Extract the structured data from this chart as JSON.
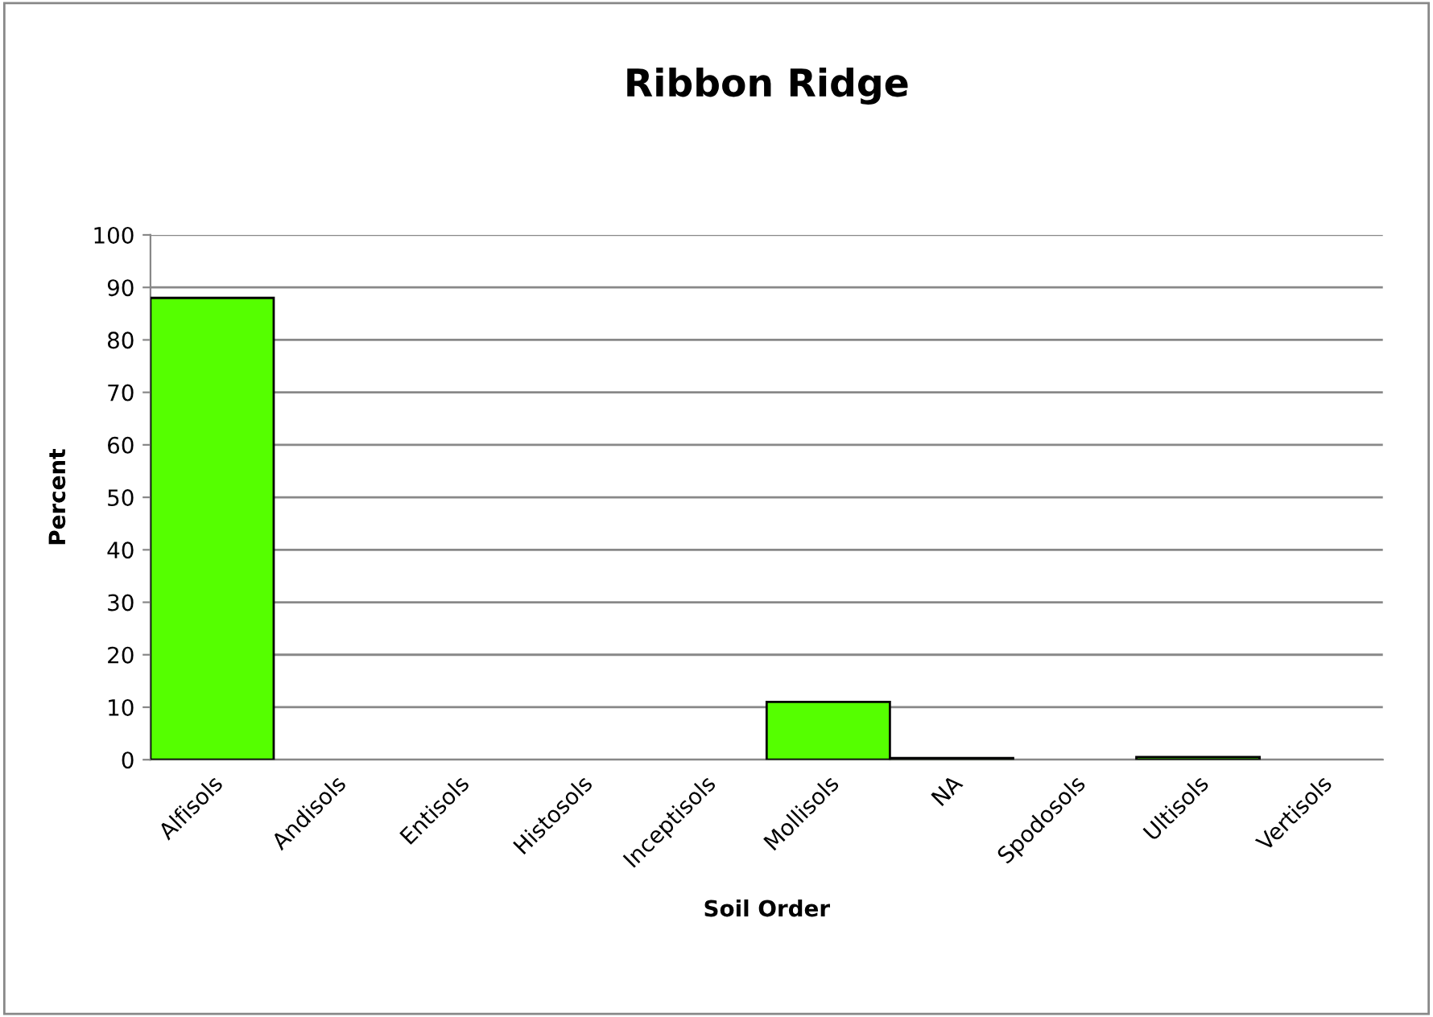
{
  "chart_data": {
    "type": "bar",
    "title": "Ribbon Ridge",
    "xlabel": "Soil Order",
    "ylabel": "Percent",
    "categories": [
      "Alfisols",
      "Andisols",
      "Entisols",
      "Histosols",
      "Inceptisols",
      "Mollisols",
      "NA",
      "Spodosols",
      "Ultisols",
      "Vertisols"
    ],
    "values": [
      88,
      0,
      0,
      0,
      0,
      11,
      0.3,
      0,
      0.5,
      0
    ],
    "color": "#55ff00",
    "ylim": [
      0,
      100
    ],
    "yticks": [
      0,
      10,
      20,
      30,
      40,
      50,
      60,
      70,
      80,
      90,
      100
    ],
    "grid": "y",
    "legend": false
  }
}
